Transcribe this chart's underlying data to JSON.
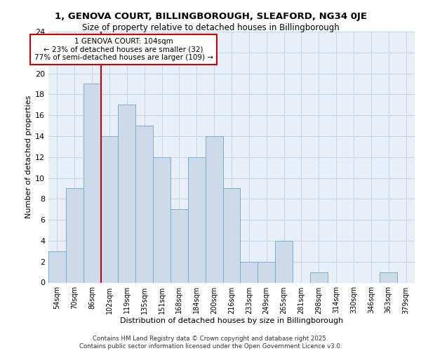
{
  "title_line1": "1, GENOVA COURT, BILLINGBOROUGH, SLEAFORD, NG34 0JE",
  "title_line2": "Size of property relative to detached houses in Billingborough",
  "xlabel": "Distribution of detached houses by size in Billingborough",
  "ylabel": "Number of detached properties",
  "footer": "Contains HM Land Registry data © Crown copyright and database right 2025.\nContains public sector information licensed under the Open Government Licence v3.0.",
  "bin_labels": [
    "54sqm",
    "70sqm",
    "86sqm",
    "102sqm",
    "119sqm",
    "135sqm",
    "151sqm",
    "168sqm",
    "184sqm",
    "200sqm",
    "216sqm",
    "233sqm",
    "249sqm",
    "265sqm",
    "281sqm",
    "298sqm",
    "314sqm",
    "330sqm",
    "346sqm",
    "363sqm",
    "379sqm"
  ],
  "bar_values": [
    3,
    9,
    19,
    14,
    17,
    15,
    12,
    7,
    12,
    14,
    9,
    2,
    2,
    4,
    0,
    1,
    0,
    0,
    0,
    1,
    0
  ],
  "bar_color": "#ccdaea",
  "bar_edge_color": "#7aaed0",
  "red_line_bin": 3,
  "annotation_text": "1 GENOVA COURT: 104sqm\n← 23% of detached houses are smaller (32)\n77% of semi-detached houses are larger (109) →",
  "annotation_box_color": "white",
  "annotation_box_edge_color": "#cc0000",
  "red_line_color": "#cc0000",
  "ylim": [
    0,
    24
  ],
  "yticks": [
    0,
    2,
    4,
    6,
    8,
    10,
    12,
    14,
    16,
    18,
    20,
    22,
    24
  ],
  "grid_color": "#c8d8e8",
  "background_color": "#e8eff8"
}
